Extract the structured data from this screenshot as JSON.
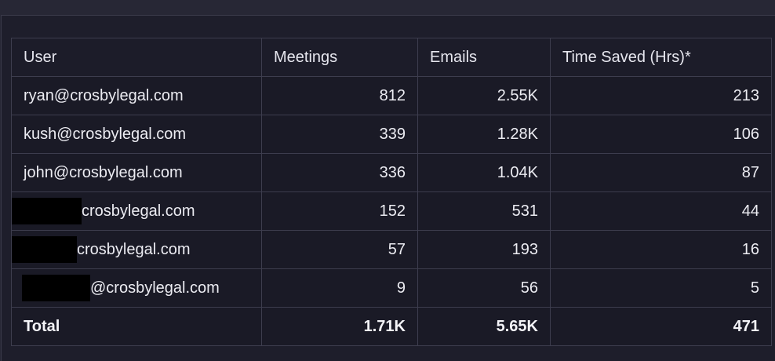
{
  "table": {
    "headers": [
      "User",
      "Meetings",
      "Emails",
      "Time Saved (Hrs)*"
    ],
    "rows": [
      {
        "user_visible": "ryan@crosbylegal.com",
        "redacted": false,
        "meetings": "812",
        "emails": "2.55K",
        "time_saved": "213"
      },
      {
        "user_visible": "kush@crosbylegal.com",
        "redacted": false,
        "meetings": "339",
        "emails": "1.28K",
        "time_saved": "106"
      },
      {
        "user_visible": "john@crosbylegal.com",
        "redacted": false,
        "meetings": "336",
        "emails": "1.04K",
        "time_saved": "87"
      },
      {
        "user_visible": "crosbylegal.com",
        "redacted": true,
        "meetings": "152",
        "emails": "531",
        "time_saved": "44"
      },
      {
        "user_visible": "crosbylegal.com",
        "redacted": true,
        "meetings": "57",
        "emails": "193",
        "time_saved": "16"
      },
      {
        "user_visible": "@crosbylegal.com",
        "redacted": true,
        "meetings": "9",
        "emails": "56",
        "time_saved": "5"
      }
    ],
    "total": {
      "label": "Total",
      "meetings": "1.71K",
      "emails": "5.65K",
      "time_saved": "471"
    }
  }
}
